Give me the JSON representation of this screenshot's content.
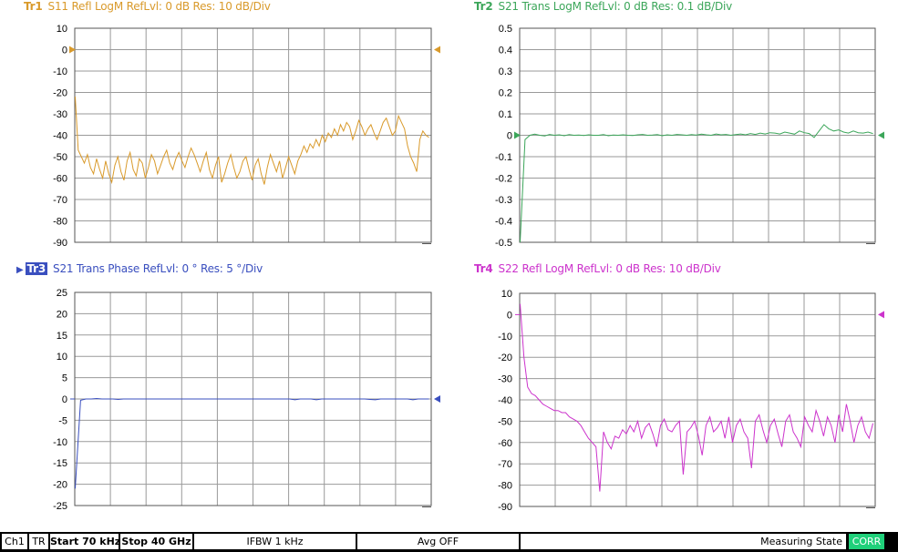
{
  "traces": [
    {
      "id": "tr1",
      "tag": "Tr1",
      "title": "S11 Refl LogM RefLvl: 0  dB Res: 10  dB/Div",
      "color": "#d99a2b",
      "ymin": -90,
      "ymax": 10,
      "ystep": 10,
      "yticks": [
        "10",
        "0",
        "-10",
        "-20",
        "-30",
        "-40",
        "-50",
        "-60",
        "-70",
        "-80",
        "-90"
      ],
      "ref": 0,
      "marker_side": "both",
      "series": [
        -22,
        -47,
        -50,
        -53,
        -49,
        -55,
        -58,
        -51,
        -56,
        -60,
        -52,
        -58,
        -62,
        -54,
        -50,
        -57,
        -61,
        -52,
        -48,
        -56,
        -59,
        -51,
        -53,
        -60,
        -55,
        -49,
        -52,
        -58,
        -54,
        -50,
        -47,
        -53,
        -56,
        -51,
        -48,
        -52,
        -55,
        -50,
        -46,
        -49,
        -53,
        -57,
        -52,
        -48,
        -56,
        -60,
        -54,
        -50,
        -62,
        -58,
        -53,
        -49,
        -55,
        -60,
        -57,
        -52,
        -50,
        -56,
        -61,
        -54,
        -51,
        -58,
        -63,
        -55,
        -49,
        -53,
        -57,
        -52,
        -60,
        -55,
        -50,
        -54,
        -58,
        -52,
        -49,
        -45,
        -48,
        -44,
        -46,
        -42,
        -45,
        -40,
        -43,
        -39,
        -41,
        -37,
        -40,
        -35,
        -38,
        -34,
        -36,
        -42,
        -38,
        -33,
        -36,
        -40,
        -37,
        -35,
        -39,
        -42,
        -38,
        -34,
        -32,
        -36,
        -40,
        -38,
        -31,
        -34,
        -37,
        -45,
        -50,
        -53,
        -57,
        -42,
        -38,
        -40,
        -41
      ]
    },
    {
      "id": "tr2",
      "tag": "Tr2",
      "title": "S21 Trans LogM RefLvl: 0  dB Res: 0.1  dB/Div",
      "color": "#3ca65a",
      "ymin": -0.5,
      "ymax": 0.5,
      "ystep": 0.1,
      "yticks": [
        "0.5",
        "0.4",
        "0.3",
        "0.2",
        "0.1",
        "0",
        "-0.1",
        "-0.2",
        "-0.3",
        "-0.4",
        "-0.5"
      ],
      "ref": 0,
      "marker_side": "both",
      "series": [
        -0.5,
        -0.02,
        0.0,
        0.005,
        0.0,
        -0.003,
        0.004,
        0.0,
        0.002,
        -0.002,
        0.003,
        0.0,
        0.001,
        -0.001,
        0.002,
        0.0,
        0.0,
        0.003,
        -0.002,
        0.001,
        0.0,
        0.002,
        0.0,
        -0.001,
        0.002,
        0.004,
        0.0,
        0.001,
        0.003,
        -0.002,
        0.002,
        0.0,
        0.004,
        0.002,
        0.0,
        0.003,
        0.001,
        0.005,
        0.002,
        0.0,
        0.006,
        0.002,
        0.004,
        0.0,
        0.003,
        0.006,
        0.002,
        0.008,
        0.004,
        0.01,
        0.006,
        0.012,
        0.01,
        0.006,
        0.015,
        0.01,
        0.005,
        0.02,
        0.012,
        0.008,
        -0.01,
        0.02,
        0.05,
        0.03,
        0.02,
        0.025,
        0.015,
        0.01,
        0.02,
        0.012,
        0.01,
        0.015,
        0.008
      ]
    },
    {
      "id": "tr3",
      "tag": "Tr3",
      "title": "S21 Trans Phase RefLvl: 0 ° Res: 5 °/Div",
      "color": "#3a4fbf",
      "ymin": -25,
      "ymax": 25,
      "ystep": 5,
      "yticks": [
        "25",
        "20",
        "15",
        "10",
        "5",
        "0",
        "-5",
        "-10",
        "-15",
        "-20",
        "-25"
      ],
      "ref": 0,
      "marker_side": "right",
      "series": [
        -21,
        -0.3,
        0,
        0,
        0.1,
        0,
        0,
        0,
        -0.1,
        0,
        0,
        0,
        0,
        0,
        0,
        0,
        0,
        0,
        0,
        0,
        0,
        0,
        0,
        0,
        0,
        0,
        0,
        0,
        0,
        0,
        0,
        0,
        0,
        0,
        0,
        0,
        0,
        0,
        0,
        0,
        0,
        -0.2,
        0,
        0,
        0,
        -0.2,
        0,
        0,
        0,
        0,
        0,
        0,
        0,
        0,
        0,
        -0.1,
        -0.2,
        0,
        0,
        0,
        0,
        0,
        0,
        -0.2,
        0,
        0,
        0
      ]
    },
    {
      "id": "tr4",
      "tag": "Tr4",
      "title": "S22 Refl LogM RefLvl: 0  dB Res: 10  dB/Div",
      "color": "#cc33cc",
      "ymin": -90,
      "ymax": 10,
      "ystep": 10,
      "yticks": [
        "10",
        "0",
        "-10",
        "-20",
        "-30",
        "-40",
        "-50",
        "-60",
        "-70",
        "-80",
        "-90"
      ],
      "ref": 0,
      "marker_side": "right",
      "series": [
        5,
        -20,
        -34,
        -37,
        -38,
        -40,
        -42,
        -43,
        -44,
        -45,
        -45,
        -46,
        -46,
        -48,
        -49,
        -50,
        -52,
        -55,
        -58,
        -60,
        -62,
        -83,
        -55,
        -60,
        -63,
        -57,
        -58,
        -54,
        -56,
        -52,
        -55,
        -50,
        -58,
        -53,
        -51,
        -56,
        -62,
        -52,
        -49,
        -54,
        -55,
        -52,
        -50,
        -75,
        -55,
        -53,
        -50,
        -57,
        -66,
        -52,
        -48,
        -55,
        -53,
        -50,
        -58,
        -48,
        -60,
        -52,
        -49,
        -55,
        -58,
        -72,
        -50,
        -47,
        -54,
        -60,
        -52,
        -49,
        -56,
        -62,
        -50,
        -47,
        -55,
        -58,
        -62,
        -48,
        -52,
        -55,
        -45,
        -50,
        -57,
        -48,
        -52,
        -60,
        -47,
        -55,
        -42,
        -50,
        -60,
        -52,
        -48,
        -55,
        -58,
        -51
      ]
    }
  ],
  "status_bar": {
    "ch": "Ch1",
    "tr": "TR",
    "start": "Start 70 kHz",
    "stop": "Stop 40 GHz",
    "ifbw": "IFBW 1 kHz",
    "avg": "Avg OFF",
    "state": "Measuring State",
    "corr": "CORR",
    "corr_color": "#1fd07a"
  }
}
